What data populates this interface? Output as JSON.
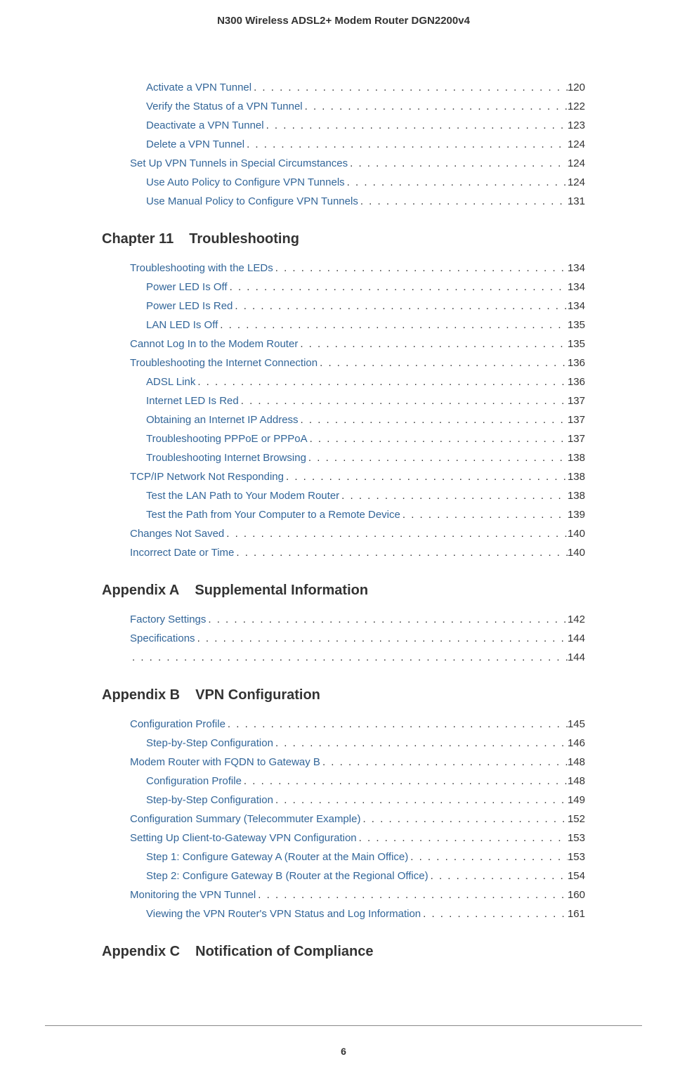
{
  "header_title": "N300 Wireless ADSL2+ Modem Router DGN2200v4",
  "page_number": "6",
  "colors": {
    "link_color": "#336699",
    "text_color": "#333333",
    "background": "#ffffff"
  },
  "sections": [
    {
      "heading": null,
      "items": [
        {
          "level": 1,
          "text": "Activate a VPN Tunnel",
          "page": "120"
        },
        {
          "level": 1,
          "text": "Verify the Status of a VPN Tunnel",
          "page": "122"
        },
        {
          "level": 1,
          "text": "Deactivate a VPN Tunnel",
          "page": "123"
        },
        {
          "level": 1,
          "text": "Delete a VPN Tunnel",
          "page": "124"
        },
        {
          "level": 0,
          "text": "Set Up VPN Tunnels in Special Circumstances",
          "page": "124"
        },
        {
          "level": 1,
          "text": "Use Auto Policy to Configure VPN Tunnels",
          "page": "124"
        },
        {
          "level": 1,
          "text": "Use Manual Policy to Configure VPN Tunnels",
          "page": "131"
        }
      ]
    },
    {
      "heading": {
        "num": "Chapter 11",
        "title": "Troubleshooting"
      },
      "items": [
        {
          "level": 0,
          "text": "Troubleshooting with the LEDs ",
          "page": "134"
        },
        {
          "level": 1,
          "text": "Power LED Is Off",
          "page": "134"
        },
        {
          "level": 1,
          "text": "Power LED Is Red",
          "page": "134"
        },
        {
          "level": 1,
          "text": "LAN LED Is Off",
          "page": "135"
        },
        {
          "level": 0,
          "text": "Cannot Log In to the Modem Router ",
          "page": "135"
        },
        {
          "level": 0,
          "text": "Troubleshooting the Internet Connection",
          "page": "136"
        },
        {
          "level": 1,
          "text": "ADSL Link",
          "page": "136"
        },
        {
          "level": 1,
          "text": "Internet LED Is Red",
          "page": "137"
        },
        {
          "level": 1,
          "text": "Obtaining an Internet IP Address",
          "page": "137"
        },
        {
          "level": 1,
          "text": "Troubleshooting PPPoE or PPPoA ",
          "page": "137"
        },
        {
          "level": 1,
          "text": "Troubleshooting Internet Browsing",
          "page": "138"
        },
        {
          "level": 0,
          "text": "TCP/IP Network Not Responding",
          "page": "138"
        },
        {
          "level": 1,
          "text": "Test the LAN Path to Your Modem Router",
          "page": "138"
        },
        {
          "level": 1,
          "text": "Test the Path from Your Computer to a Remote Device",
          "page": "139"
        },
        {
          "level": 0,
          "text": "Changes Not Saved",
          "page": "140"
        },
        {
          "level": 0,
          "text": "Incorrect Date or Time",
          "page": "140"
        }
      ]
    },
    {
      "heading": {
        "num": "Appendix A",
        "title": "Supplemental Information"
      },
      "items": [
        {
          "level": 0,
          "text": "Factory Settings",
          "page": "142"
        },
        {
          "level": 0,
          "text": "Specifications",
          "page": "144"
        },
        {
          "level": 0,
          "text": " ",
          "page": "144"
        }
      ]
    },
    {
      "heading": {
        "num": "Appendix B",
        "title": "VPN Configuration"
      },
      "items": [
        {
          "level": 0,
          "text": "Configuration Profile",
          "page": "145"
        },
        {
          "level": 1,
          "text": "Step-by-Step Configuration ",
          "page": "146"
        },
        {
          "level": 0,
          "text": "Modem Router with FQDN to Gateway B ",
          "page": "148"
        },
        {
          "level": 1,
          "text": "Configuration Profile",
          "page": "148"
        },
        {
          "level": 1,
          "text": "Step-by-Step Configuration ",
          "page": "149"
        },
        {
          "level": 0,
          "text": "Configuration Summary (Telecommuter Example) ",
          "page": "152"
        },
        {
          "level": 0,
          "text": "Setting Up Client-to-Gateway VPN Configuration ",
          "page": "153"
        },
        {
          "level": 1,
          "text": "Step 1: Configure Gateway A (Router at the Main Office)",
          "page": "153"
        },
        {
          "level": 1,
          "text": "Step 2: Configure Gateway B (Router at the Regional Office)",
          "page": "154"
        },
        {
          "level": 0,
          "text": "Monitoring the VPN Tunnel ",
          "page": "160"
        },
        {
          "level": 1,
          "text": "Viewing the VPN Router's VPN Status and Log Information",
          "page": "161"
        }
      ]
    },
    {
      "heading": {
        "num": "Appendix C",
        "title": "Notification of Compliance"
      },
      "items": []
    }
  ]
}
